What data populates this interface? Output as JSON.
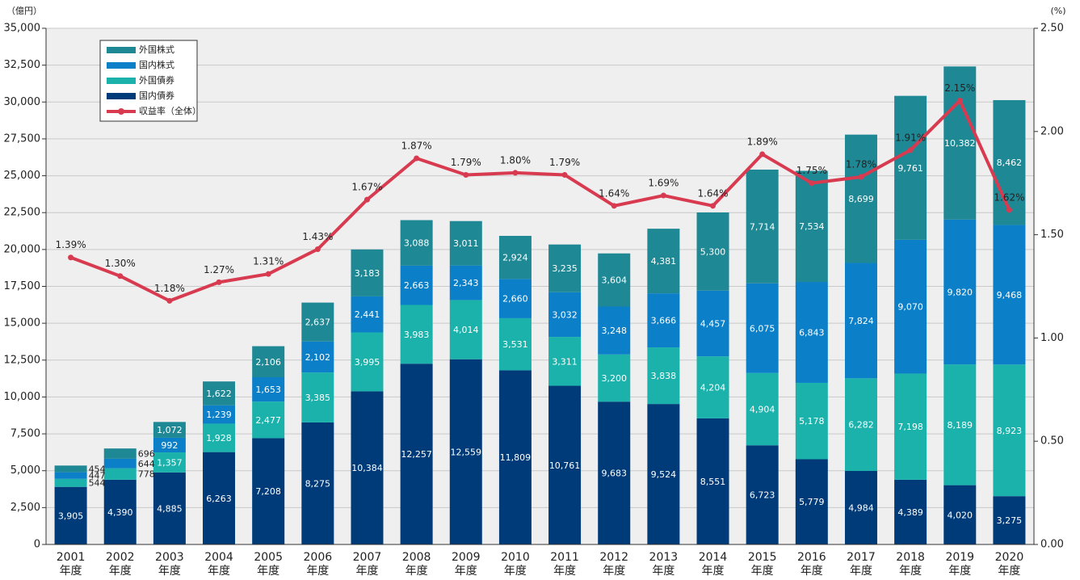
{
  "chart_data": {
    "type": "bar",
    "stacked": true,
    "y_unit_label": "（億円）",
    "y2_unit_label": "(%)",
    "categories": [
      "2001",
      "2002",
      "2003",
      "2004",
      "2005",
      "2006",
      "2007",
      "2008",
      "2009",
      "2010",
      "2011",
      "2012",
      "2013",
      "2014",
      "2015",
      "2016",
      "2017",
      "2018",
      "2019",
      "2020"
    ],
    "category_suffix": "年度",
    "ylim": [
      0,
      35000
    ],
    "yticks": [
      0,
      {
        "value": 2500,
        "label": "2,500"
      },
      {
        "value": 5000,
        "label": "5,000"
      },
      {
        "value": 7500,
        "label": "7,500"
      },
      {
        "value": 10000,
        "label": "10,000"
      },
      {
        "value": 12500,
        "label": "12,500"
      },
      {
        "value": 15000,
        "label": "15,000"
      },
      {
        "value": 17500,
        "label": "17,500"
      },
      {
        "value": 20000,
        "label": "20,000"
      },
      {
        "value": 22500,
        "label": "22,500"
      },
      {
        "value": 25000,
        "label": "25,000"
      },
      {
        "value": 27500,
        "label": "27,500"
      },
      {
        "value": 30000,
        "label": "30,000"
      },
      {
        "value": 32500,
        "label": "32,500"
      },
      {
        "value": 35000,
        "label": "35,000"
      }
    ],
    "y2lim": [
      0,
      2.5
    ],
    "y2ticks": [
      {
        "value": 0,
        "label": "0.00"
      },
      {
        "value": 0.5,
        "label": "0.50"
      },
      {
        "value": 1,
        "label": "1.00"
      },
      {
        "value": 1.5,
        "label": "1.50"
      },
      {
        "value": 2,
        "label": "2.00"
      },
      {
        "value": 2.5,
        "label": "2.50"
      }
    ],
    "grid": true,
    "series": [
      {
        "name": "国内債券",
        "color": "#003b79",
        "values": [
          3905,
          4390,
          4885,
          6263,
          7208,
          8275,
          10384,
          12257,
          12559,
          11809,
          10761,
          9683,
          9524,
          8551,
          6723,
          5779,
          4984,
          4389,
          4020,
          3275
        ],
        "value_labels": [
          "3,905",
          "4,390",
          "4,885",
          "6,263",
          "7,208",
          "8,275",
          "10,384",
          "12,257",
          "12,559",
          "11,809",
          "10,761",
          "9,683",
          "9,524",
          "8,551",
          "6,723",
          "5,779",
          "4,984",
          "4,389",
          "4,020",
          "3,275"
        ]
      },
      {
        "name": "外国債券",
        "color": "#1bb2ab",
        "values": [
          544,
          778,
          1357,
          1928,
          2477,
          3385,
          3995,
          3983,
          4014,
          3531,
          3311,
          3200,
          3838,
          4204,
          4904,
          5178,
          6282,
          7198,
          8189,
          8923
        ],
        "value_labels": [
          "544",
          "778",
          "1,357",
          "1,928",
          "2,477",
          "3,385",
          "3,995",
          "3,983",
          "4,014",
          "3,531",
          "3,311",
          "3,200",
          "3,838",
          "4,204",
          "4,904",
          "5,178",
          "6,282",
          "7,198",
          "8,189",
          "8,923"
        ]
      },
      {
        "name": "国内株式",
        "color": "#0b7fc7",
        "values": [
          447,
          644,
          992,
          1239,
          1653,
          2102,
          2441,
          2663,
          2343,
          2660,
          3032,
          3248,
          3666,
          4457,
          6075,
          6843,
          7824,
          9070,
          9820,
          9468
        ],
        "value_labels": [
          "447",
          "644",
          "992",
          "1,239",
          "1,653",
          "2,102",
          "2,441",
          "2,663",
          "2,343",
          "2,660",
          "3,032",
          "3,248",
          "3,666",
          "4,457",
          "6,075",
          "6,843",
          "7,824",
          "9,070",
          "9,820",
          "9,468"
        ]
      },
      {
        "name": "外国株式",
        "color": "#1f8895",
        "values": [
          454,
          696,
          1072,
          1622,
          2106,
          2637,
          3183,
          3088,
          3011,
          2924,
          3235,
          3604,
          4381,
          5300,
          7714,
          7534,
          8699,
          9761,
          10382,
          8462
        ],
        "value_labels": [
          "454",
          "696",
          "1,072",
          "1,622",
          "2,106",
          "2,637",
          "3,183",
          "3,088",
          "3,011",
          "2,924",
          "3,235",
          "3,604",
          "4,381",
          "5,300",
          "7,714",
          "7,534",
          "8,699",
          "9,761",
          "10,382",
          "8,462"
        ]
      },
      {
        "name": "収益率（全体）",
        "color": "#d83a50",
        "type": "line",
        "axis": "y2",
        "values": [
          1.39,
          1.3,
          1.18,
          1.27,
          1.31,
          1.43,
          1.67,
          1.87,
          1.79,
          1.8,
          1.79,
          1.64,
          1.69,
          1.64,
          1.89,
          1.75,
          1.78,
          1.91,
          2.15,
          1.62
        ],
        "value_labels": [
          "1.39%",
          "1.30%",
          "1.18%",
          "1.27%",
          "1.31%",
          "1.43%",
          "1.67%",
          "1.87%",
          "1.79%",
          "1.80%",
          "1.79%",
          "1.64%",
          "1.69%",
          "1.64%",
          "1.89%",
          "1.75%",
          "1.78%",
          "1.91%",
          "2.15%",
          "1.62%"
        ]
      }
    ],
    "legend_order": [
      3,
      2,
      1,
      0,
      4
    ],
    "legend": "upper left"
  }
}
